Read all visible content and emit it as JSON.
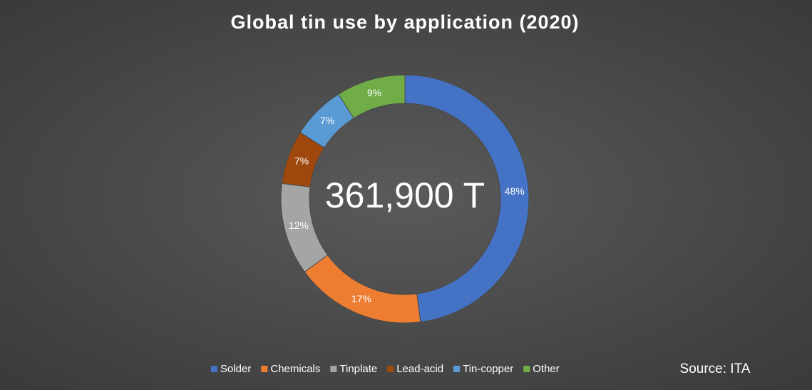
{
  "chart_data": {
    "type": "donut",
    "title": "Global tin use by application (2020)",
    "center_label": "361,900 T",
    "source": "Source: ITA",
    "categories": [
      "Solder",
      "Chemicals",
      "Tinplate",
      "Lead-acid",
      "Tin-copper",
      "Other"
    ],
    "values": [
      48,
      17,
      12,
      7,
      7,
      9
    ],
    "value_labels": [
      "48%",
      "17%",
      "12%",
      "7%",
      "7%",
      "9%"
    ],
    "colors": [
      "#4472c4",
      "#ed7d31",
      "#a5a5a5",
      "#9e480e",
      "#5b9bd5",
      "#70ad47"
    ],
    "legend": "bottom"
  }
}
